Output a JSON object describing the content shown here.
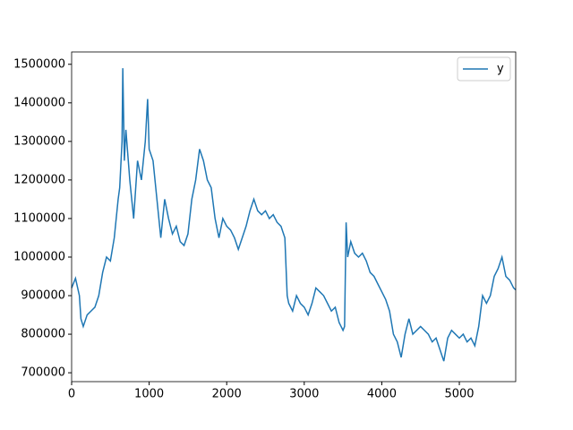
{
  "chart_data": {
    "type": "line",
    "x": [
      0,
      50,
      100,
      120,
      150,
      200,
      250,
      300,
      350,
      400,
      450,
      500,
      550,
      600,
      620,
      650,
      660,
      680,
      700,
      750,
      800,
      850,
      900,
      950,
      980,
      1000,
      1050,
      1100,
      1150,
      1200,
      1250,
      1300,
      1350,
      1400,
      1450,
      1500,
      1550,
      1600,
      1650,
      1700,
      1750,
      1800,
      1850,
      1900,
      1950,
      2000,
      2050,
      2100,
      2150,
      2200,
      2250,
      2300,
      2350,
      2400,
      2450,
      2500,
      2550,
      2600,
      2650,
      2700,
      2750,
      2780,
      2800,
      2850,
      2900,
      2950,
      3000,
      3050,
      3100,
      3150,
      3200,
      3250,
      3300,
      3350,
      3400,
      3450,
      3500,
      3520,
      3540,
      3560,
      3600,
      3650,
      3700,
      3750,
      3800,
      3850,
      3900,
      3950,
      4000,
      4050,
      4100,
      4150,
      4200,
      4250,
      4300,
      4350,
      4400,
      4450,
      4500,
      4550,
      4600,
      4650,
      4700,
      4750,
      4800,
      4850,
      4900,
      4950,
      5000,
      5050,
      5100,
      5150,
      5200,
      5250,
      5300,
      5350,
      5400,
      5450,
      5500,
      5550,
      5600,
      5650,
      5700,
      5727
    ],
    "series": [
      {
        "name": "y",
        "color": "#1f77b4",
        "values": [
          920000,
          945000,
          900000,
          840000,
          820000,
          850000,
          860000,
          870000,
          900000,
          960000,
          1000000,
          990000,
          1050000,
          1150000,
          1180000,
          1300000,
          1490000,
          1250000,
          1330000,
          1200000,
          1100000,
          1250000,
          1200000,
          1300000,
          1410000,
          1280000,
          1250000,
          1150000,
          1050000,
          1150000,
          1100000,
          1060000,
          1080000,
          1040000,
          1030000,
          1060000,
          1150000,
          1200000,
          1280000,
          1250000,
          1200000,
          1180000,
          1100000,
          1050000,
          1100000,
          1080000,
          1070000,
          1050000,
          1020000,
          1050000,
          1080000,
          1120000,
          1150000,
          1120000,
          1110000,
          1120000,
          1100000,
          1110000,
          1090000,
          1080000,
          1050000,
          900000,
          880000,
          860000,
          900000,
          880000,
          870000,
          850000,
          880000,
          920000,
          910000,
          900000,
          880000,
          860000,
          870000,
          830000,
          810000,
          820000,
          1090000,
          1000000,
          1040000,
          1010000,
          1000000,
          1010000,
          990000,
          960000,
          950000,
          930000,
          910000,
          890000,
          860000,
          800000,
          780000,
          740000,
          800000,
          840000,
          800000,
          810000,
          820000,
          810000,
          800000,
          780000,
          790000,
          760000,
          730000,
          790000,
          810000,
          800000,
          790000,
          800000,
          780000,
          790000,
          770000,
          820000,
          900000,
          880000,
          900000,
          950000,
          970000,
          1000000,
          950000,
          940000,
          920000,
          915000
        ]
      }
    ],
    "xlim": [
      0,
      5727
    ],
    "xticks": [
      0,
      1000,
      2000,
      3000,
      4000,
      5000
    ],
    "ylim": [
      677000,
      1532000
    ],
    "yticks": [
      700000,
      800000,
      900000,
      1000000,
      1100000,
      1200000,
      1300000,
      1400000,
      1500000
    ],
    "legend": "upper right"
  }
}
